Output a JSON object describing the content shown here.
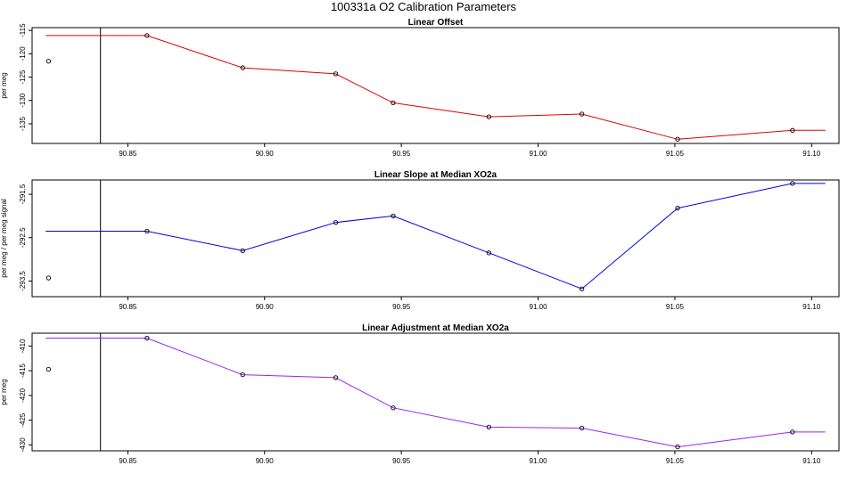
{
  "figure": {
    "title": "100331a   O2 Calibration Parameters"
  },
  "colors": {
    "offset": "#e00000",
    "slope": "#0000e6",
    "adjust": "#a020f0",
    "axis": "#000000"
  },
  "chart_data": [
    {
      "type": "line",
      "title": "Linear Offset",
      "xlabel": "",
      "ylabel": "per meg",
      "xlim": [
        90.815,
        91.11
      ],
      "ylim": [
        -139.2,
        -114.4
      ],
      "x_ticks": [
        "90.85",
        "90.90",
        "90.95",
        "91.00",
        "91.05",
        "91.10"
      ],
      "y_ticks": [
        "-115",
        "-120",
        "-125",
        "-130",
        "-135"
      ],
      "reference_x": 90.84,
      "standalone_point": {
        "x": 90.821,
        "y": -121.6
      },
      "series": [
        {
          "x": [
            90.82,
            90.857,
            90.892,
            90.926,
            90.947,
            90.982,
            91.016,
            91.051,
            91.093,
            91.105
          ],
          "y": [
            -116.1,
            -116.1,
            -123.0,
            -124.3,
            -130.5,
            -133.5,
            -132.9,
            -138.3,
            -136.4,
            -136.4
          ],
          "markers": [
            false,
            true,
            true,
            true,
            true,
            true,
            true,
            true,
            true,
            false
          ]
        }
      ]
    },
    {
      "type": "line",
      "title": "Linear Slope at Median XO2a",
      "xlabel": "",
      "ylabel": "per meg / per meg signal",
      "xlim": [
        90.815,
        91.11
      ],
      "ylim": [
        -293.86,
        -291.17
      ],
      "x_ticks": [
        "90.85",
        "90.90",
        "90.95",
        "91.00",
        "91.05",
        "91.10"
      ],
      "y_ticks": [
        "-291.5",
        "-292.5",
        "-293.5"
      ],
      "reference_x": 90.84,
      "standalone_point": {
        "x": 90.821,
        "y": -293.43
      },
      "series": [
        {
          "x": [
            90.82,
            90.857,
            90.892,
            90.926,
            90.947,
            90.982,
            91.016,
            91.051,
            91.093,
            91.105
          ],
          "y": [
            -292.35,
            -292.35,
            -292.8,
            -292.15,
            -292.0,
            -292.85,
            -293.68,
            -291.82,
            -291.25,
            -291.25
          ],
          "markers": [
            false,
            true,
            true,
            true,
            true,
            true,
            true,
            true,
            true,
            false
          ]
        }
      ]
    },
    {
      "type": "line",
      "title": "Linear Adjustment at Median XO2a",
      "xlabel": "",
      "ylabel": "per meg",
      "xlim": [
        90.815,
        91.11
      ],
      "ylim": [
        -431.2,
        -407.4
      ],
      "x_ticks": [
        "90.85",
        "90.90",
        "90.95",
        "91.00",
        "91.05",
        "91.10"
      ],
      "y_ticks": [
        "-410",
        "-415",
        "-420",
        "-425",
        "-430"
      ],
      "reference_x": 90.84,
      "standalone_point": {
        "x": 90.821,
        "y": -414.7
      },
      "series": [
        {
          "x": [
            90.82,
            90.857,
            90.892,
            90.926,
            90.947,
            90.982,
            91.016,
            91.051,
            91.093,
            91.105
          ],
          "y": [
            -408.4,
            -408.4,
            -415.8,
            -416.4,
            -422.5,
            -426.4,
            -426.6,
            -430.4,
            -427.4,
            -427.4
          ],
          "markers": [
            false,
            true,
            true,
            true,
            true,
            true,
            true,
            true,
            true,
            false
          ]
        }
      ]
    }
  ]
}
